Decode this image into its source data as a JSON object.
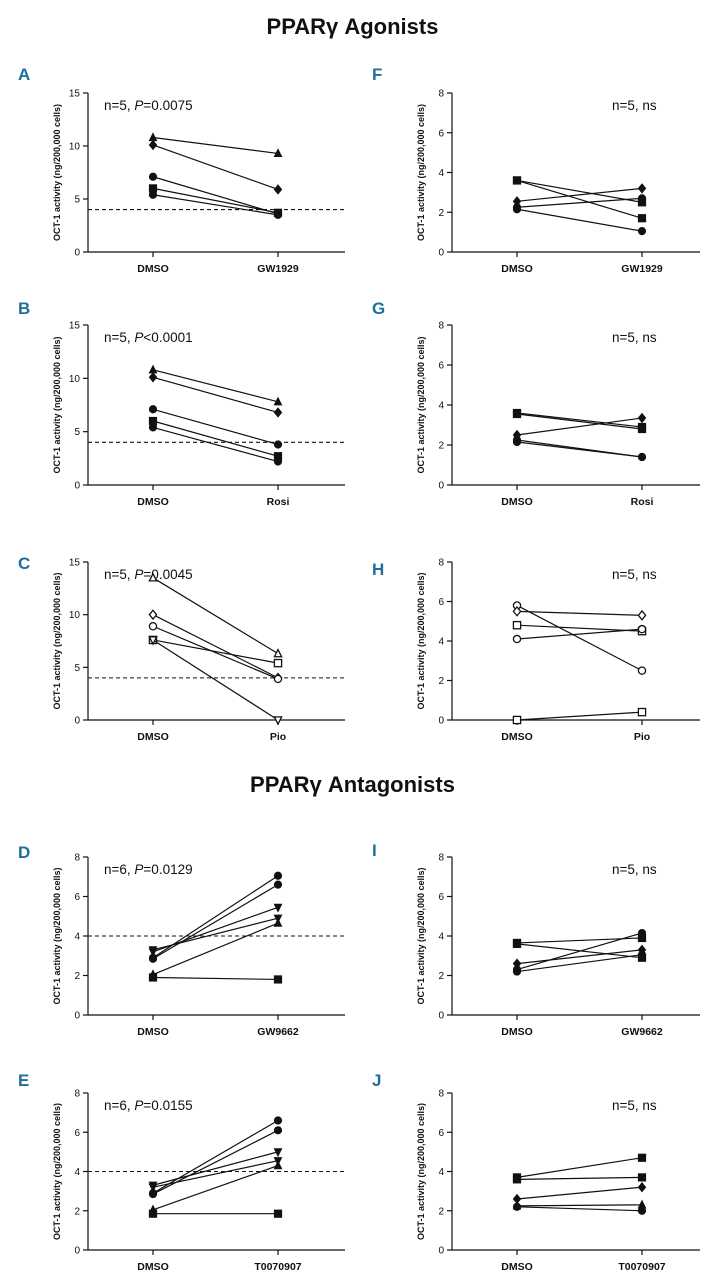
{
  "figure": {
    "agonists_title": "PPARγ Agonists",
    "antagonists_title": "PPARγ Antagonists"
  },
  "colors": {
    "panel_letter": "#1f6f9a",
    "line": "#111111"
  },
  "chart_data": [
    {
      "id": "A",
      "type": "line",
      "ylabel": "OCT-1 activity (ng/200,000 cells)",
      "annotation_prefix": "n=5, ",
      "annotation_p": "P",
      "annotation_suffix": "=0.0075",
      "categories": [
        "DMSO",
        "GW1929"
      ],
      "ylim": [
        0,
        15
      ],
      "yticks": [
        0,
        5,
        10,
        15
      ],
      "threshold": 4,
      "series": [
        {
          "marker": "triangle",
          "values": [
            10.8,
            9.3
          ]
        },
        {
          "marker": "diamond",
          "values": [
            10.1,
            5.9
          ]
        },
        {
          "marker": "circle",
          "values": [
            7.1,
            3.6
          ]
        },
        {
          "marker": "square",
          "values": [
            6.0,
            3.7
          ]
        },
        {
          "marker": "circle",
          "values": [
            5.4,
            3.5
          ]
        }
      ]
    },
    {
      "id": "F",
      "type": "line",
      "ylabel": "OCT-1 activity (ng/200,000 cells)",
      "annotation_prefix": "n=5, ns",
      "annotation_p": "",
      "annotation_suffix": "",
      "categories": [
        "DMSO",
        "GW1929"
      ],
      "ylim": [
        0,
        8
      ],
      "yticks": [
        0,
        2,
        4,
        6,
        8
      ],
      "threshold": null,
      "series": [
        {
          "marker": "square",
          "values": [
            3.6,
            2.5
          ]
        },
        {
          "marker": "square",
          "values": [
            3.6,
            1.7
          ]
        },
        {
          "marker": "diamond",
          "values": [
            2.55,
            3.2
          ]
        },
        {
          "marker": "circle",
          "values": [
            2.25,
            2.7
          ]
        },
        {
          "marker": "circle",
          "values": [
            2.15,
            1.05
          ]
        }
      ]
    },
    {
      "id": "B",
      "type": "line",
      "ylabel": "OCT-1 activity (ng/200,000 cells)",
      "annotation_prefix": "n=5, ",
      "annotation_p": "P",
      "annotation_suffix": "<0.0001",
      "categories": [
        "DMSO",
        "Rosi"
      ],
      "ylim": [
        0,
        15
      ],
      "yticks": [
        0,
        5,
        10,
        15
      ],
      "threshold": 4,
      "series": [
        {
          "marker": "triangle",
          "values": [
            10.8,
            7.8
          ]
        },
        {
          "marker": "diamond",
          "values": [
            10.1,
            6.8
          ]
        },
        {
          "marker": "circle",
          "values": [
            7.1,
            3.8
          ]
        },
        {
          "marker": "square",
          "values": [
            6.0,
            2.7
          ]
        },
        {
          "marker": "circle",
          "values": [
            5.4,
            2.2
          ]
        }
      ]
    },
    {
      "id": "G",
      "type": "line",
      "ylabel": "OCT-1 activity (ng/200,000 cells)",
      "annotation_prefix": "n=5, ns",
      "annotation_p": "",
      "annotation_suffix": "",
      "categories": [
        "DMSO",
        "Rosi"
      ],
      "ylim": [
        0,
        8
      ],
      "yticks": [
        0,
        2,
        4,
        6,
        8
      ],
      "threshold": null,
      "series": [
        {
          "marker": "square",
          "values": [
            3.6,
            2.9
          ]
        },
        {
          "marker": "square",
          "values": [
            3.55,
            2.8
          ]
        },
        {
          "marker": "diamond",
          "values": [
            2.5,
            3.35
          ]
        },
        {
          "marker": "circle",
          "values": [
            2.25,
            1.4
          ]
        },
        {
          "marker": "circle",
          "values": [
            2.15,
            1.4
          ]
        }
      ]
    },
    {
      "id": "C",
      "type": "line",
      "ylabel": "OCT-1 activity (ng/200,000 cells)",
      "annotation_prefix": "n=5, ",
      "annotation_p": "P",
      "annotation_suffix": "=0.0045",
      "categories": [
        "DMSO",
        "Pio"
      ],
      "ylim": [
        0,
        15
      ],
      "yticks": [
        0,
        5,
        10,
        15
      ],
      "threshold": 4,
      "series": [
        {
          "marker": "triangle-open",
          "values": [
            13.5,
            6.3
          ]
        },
        {
          "marker": "diamond-open",
          "values": [
            10.0,
            4.0
          ]
        },
        {
          "marker": "circle-open",
          "values": [
            8.9,
            3.9
          ]
        },
        {
          "marker": "square-open",
          "values": [
            7.6,
            5.4
          ]
        },
        {
          "marker": "triangle-down-open",
          "values": [
            7.6,
            0.0
          ]
        }
      ]
    },
    {
      "id": "H",
      "type": "line",
      "ylabel": "OCT-1 activity (ng/200,000 cells)",
      "annotation_prefix": "n=5, ns",
      "annotation_p": "",
      "annotation_suffix": "",
      "categories": [
        "DMSO",
        "Pio"
      ],
      "ylim": [
        0,
        8
      ],
      "yticks": [
        0,
        2,
        4,
        6,
        8
      ],
      "threshold": null,
      "series": [
        {
          "marker": "circle-open",
          "values": [
            5.8,
            2.5
          ]
        },
        {
          "marker": "diamond-open",
          "values": [
            5.5,
            5.3
          ]
        },
        {
          "marker": "square-open",
          "values": [
            4.8,
            4.5
          ]
        },
        {
          "marker": "circle-open",
          "values": [
            4.1,
            4.6
          ]
        },
        {
          "marker": "square-open",
          "values": [
            0.0,
            0.4
          ]
        }
      ]
    },
    {
      "id": "D",
      "type": "line",
      "ylabel": "OCT-1 activity (ng/200,000 cells)",
      "annotation_prefix": "n=6, ",
      "annotation_p": "P",
      "annotation_suffix": "=0.0129",
      "categories": [
        "DMSO",
        "GW9662"
      ],
      "ylim": [
        0,
        8
      ],
      "yticks": [
        0,
        2,
        4,
        6,
        8
      ],
      "threshold": 4,
      "series": [
        {
          "marker": "circle",
          "values": [
            2.9,
            7.05
          ]
        },
        {
          "marker": "circle",
          "values": [
            2.85,
            6.6
          ]
        },
        {
          "marker": "triangle-down",
          "values": [
            3.2,
            5.45
          ]
        },
        {
          "marker": "triangle-down",
          "values": [
            3.3,
            4.9
          ]
        },
        {
          "marker": "triangle",
          "values": [
            2.05,
            4.65
          ]
        },
        {
          "marker": "square",
          "values": [
            1.9,
            1.8
          ]
        }
      ]
    },
    {
      "id": "I",
      "type": "line",
      "ylabel": "OCT-1 activity (ng/200,000 cells)",
      "annotation_prefix": "n=5, ns",
      "annotation_p": "",
      "annotation_suffix": "",
      "categories": [
        "DMSO",
        "GW9662"
      ],
      "ylim": [
        0,
        8
      ],
      "yticks": [
        0,
        2,
        4,
        6,
        8
      ],
      "threshold": null,
      "series": [
        {
          "marker": "square",
          "values": [
            3.65,
            3.9
          ]
        },
        {
          "marker": "square",
          "values": [
            3.6,
            2.9
          ]
        },
        {
          "marker": "diamond",
          "values": [
            2.6,
            3.3
          ]
        },
        {
          "marker": "circle",
          "values": [
            2.3,
            4.15
          ]
        },
        {
          "marker": "circle",
          "values": [
            2.2,
            3.05
          ]
        }
      ]
    },
    {
      "id": "E",
      "type": "line",
      "ylabel": "OCT-1 activity (ng/200,000 cells)",
      "annotation_prefix": "n=6, ",
      "annotation_p": "P",
      "annotation_suffix": "=0.0155",
      "categories": [
        "DMSO",
        "T0070907"
      ],
      "ylim": [
        0,
        8
      ],
      "yticks": [
        0,
        2,
        4,
        6,
        8
      ],
      "threshold": 4,
      "series": [
        {
          "marker": "circle",
          "values": [
            2.9,
            6.6
          ]
        },
        {
          "marker": "circle",
          "values": [
            2.85,
            6.1
          ]
        },
        {
          "marker": "triangle-down",
          "values": [
            3.3,
            5.0
          ]
        },
        {
          "marker": "triangle-down",
          "values": [
            3.2,
            4.55
          ]
        },
        {
          "marker": "triangle",
          "values": [
            2.05,
            4.3
          ]
        },
        {
          "marker": "square",
          "values": [
            1.85,
            1.85
          ]
        }
      ]
    },
    {
      "id": "J",
      "type": "line",
      "ylabel": "OCT-1 activity (ng/200,000 cells)",
      "annotation_prefix": "n=5, ns",
      "annotation_p": "",
      "annotation_suffix": "",
      "categories": [
        "DMSO",
        "T0070907"
      ],
      "ylim": [
        0,
        8
      ],
      "yticks": [
        0,
        2,
        4,
        6,
        8
      ],
      "threshold": null,
      "series": [
        {
          "marker": "square",
          "values": [
            3.7,
            4.7
          ]
        },
        {
          "marker": "square",
          "values": [
            3.6,
            3.7
          ]
        },
        {
          "marker": "diamond",
          "values": [
            2.6,
            3.2
          ]
        },
        {
          "marker": "triangle",
          "values": [
            2.25,
            2.3
          ]
        },
        {
          "marker": "circle",
          "values": [
            2.2,
            2.0
          ]
        }
      ]
    }
  ]
}
